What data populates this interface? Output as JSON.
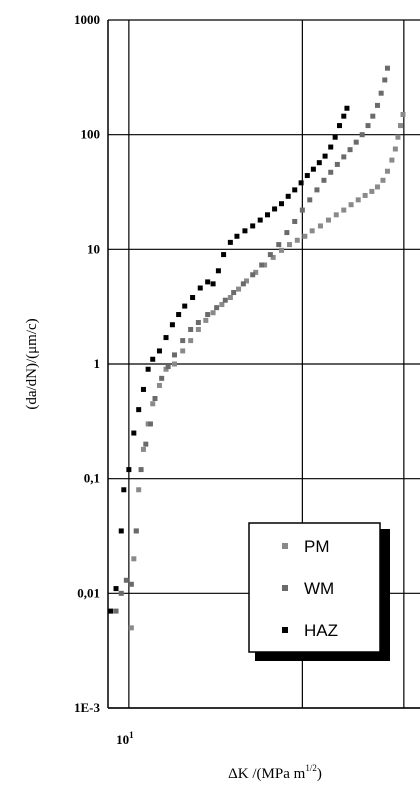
{
  "chart_data": {
    "type": "scatter",
    "title": "",
    "xlabel": "ΔK  /(MPa m",
    "xlabel_sup": "1/2",
    "xlabel_tail": ")",
    "ylabel": "(da/dN)/(μm/c)",
    "x_scale": "log",
    "y_scale": "log",
    "xlim": [
      9.2,
      32
    ],
    "ylim": [
      0.001,
      1000
    ],
    "x_tick_labels": [
      {
        "value": 10,
        "label": "10",
        "sup": "1"
      }
    ],
    "y_tick_labels": [
      {
        "value": 1000,
        "label": "1000"
      },
      {
        "value": 100,
        "label": "100"
      },
      {
        "value": 10,
        "label": "10"
      },
      {
        "value": 1,
        "label": "1"
      },
      {
        "value": 0.1,
        "label": "0,1"
      },
      {
        "value": 0.01,
        "label": "0,01"
      },
      {
        "value": 0.001,
        "label": "1E-3"
      }
    ],
    "x_gridlines": [
      10,
      20,
      30
    ],
    "grid": true,
    "legend_position": "bottom-right",
    "series": [
      {
        "name": "PM",
        "color": "#8a8a8a",
        "points": [
          [
            10.1,
            0.005
          ],
          [
            10.2,
            0.02
          ],
          [
            10.3,
            0.035
          ],
          [
            10.4,
            0.08
          ],
          [
            10.6,
            0.18
          ],
          [
            10.8,
            0.3
          ],
          [
            11.0,
            0.45
          ],
          [
            11.3,
            0.65
          ],
          [
            11.6,
            0.9
          ],
          [
            12.0,
            1.0
          ],
          [
            12.4,
            1.3
          ],
          [
            12.8,
            1.6
          ],
          [
            13.2,
            2.0
          ],
          [
            13.6,
            2.4
          ],
          [
            14.0,
            2.8
          ],
          [
            14.5,
            3.3
          ],
          [
            15.0,
            3.8
          ],
          [
            15.5,
            4.5
          ],
          [
            16.0,
            5.3
          ],
          [
            16.6,
            6.3
          ],
          [
            17.2,
            7.3
          ],
          [
            17.8,
            8.5
          ],
          [
            18.4,
            9.8
          ],
          [
            19.0,
            11.0
          ],
          [
            19.6,
            12.0
          ],
          [
            20.2,
            13.0
          ],
          [
            20.8,
            14.5
          ],
          [
            21.5,
            16.0
          ],
          [
            22.2,
            18.0
          ],
          [
            22.9,
            20.0
          ],
          [
            23.6,
            22.0
          ],
          [
            24.3,
            24.5
          ],
          [
            25.0,
            27.0
          ],
          [
            25.7,
            29.5
          ],
          [
            26.4,
            32.0
          ],
          [
            27.0,
            35.0
          ],
          [
            27.6,
            40.0
          ],
          [
            28.1,
            48.0
          ],
          [
            28.6,
            60.0
          ],
          [
            29.0,
            75.0
          ],
          [
            29.3,
            95.0
          ],
          [
            29.6,
            120.0
          ],
          [
            29.9,
            150.0
          ]
        ]
      },
      {
        "name": "WM",
        "color": "#6a6a6a",
        "points": [
          [
            9.5,
            0.007
          ],
          [
            9.7,
            0.01
          ],
          [
            9.9,
            0.013
          ],
          [
            10.1,
            0.012
          ],
          [
            10.3,
            0.035
          ],
          [
            10.5,
            0.12
          ],
          [
            10.7,
            0.2
          ],
          [
            10.9,
            0.3
          ],
          [
            11.1,
            0.5
          ],
          [
            11.4,
            0.75
          ],
          [
            11.7,
            0.95
          ],
          [
            12.0,
            1.2
          ],
          [
            12.4,
            1.6
          ],
          [
            12.8,
            2.0
          ],
          [
            13.2,
            2.3
          ],
          [
            13.7,
            2.7
          ],
          [
            14.2,
            3.1
          ],
          [
            14.7,
            3.6
          ],
          [
            15.2,
            4.2
          ],
          [
            15.8,
            5.0
          ],
          [
            16.4,
            6.0
          ],
          [
            17.0,
            7.3
          ],
          [
            17.6,
            9.0
          ],
          [
            18.2,
            11.0
          ],
          [
            18.8,
            14.0
          ],
          [
            19.4,
            17.5
          ],
          [
            20.0,
            22.0
          ],
          [
            20.6,
            27.0
          ],
          [
            21.2,
            33.0
          ],
          [
            21.8,
            40.0
          ],
          [
            22.4,
            47.0
          ],
          [
            23.0,
            55.0
          ],
          [
            23.6,
            64.0
          ],
          [
            24.2,
            74.0
          ],
          [
            24.8,
            86.0
          ],
          [
            25.4,
            100.0
          ],
          [
            26.0,
            120.0
          ],
          [
            26.5,
            145.0
          ],
          [
            27.0,
            180.0
          ],
          [
            27.4,
            230.0
          ],
          [
            27.8,
            300.0
          ],
          [
            28.1,
            380.0
          ]
        ]
      },
      {
        "name": "HAZ",
        "color": "#000000",
        "points": [
          [
            9.3,
            0.007
          ],
          [
            9.5,
            0.011
          ],
          [
            9.7,
            0.035
          ],
          [
            9.8,
            0.08
          ],
          [
            10.0,
            0.12
          ],
          [
            10.2,
            0.25
          ],
          [
            10.4,
            0.4
          ],
          [
            10.6,
            0.6
          ],
          [
            10.8,
            0.9
          ],
          [
            11.0,
            1.1
          ],
          [
            11.3,
            1.3
          ],
          [
            11.6,
            1.7
          ],
          [
            11.9,
            2.2
          ],
          [
            12.2,
            2.7
          ],
          [
            12.5,
            3.2
          ],
          [
            12.9,
            3.8
          ],
          [
            13.3,
            4.6
          ],
          [
            13.7,
            5.2
          ],
          [
            14.0,
            5.0
          ],
          [
            14.3,
            6.5
          ],
          [
            14.6,
            9.0
          ],
          [
            15.0,
            11.5
          ],
          [
            15.4,
            13.0
          ],
          [
            15.9,
            14.5
          ],
          [
            16.4,
            16.0
          ],
          [
            16.9,
            18.0
          ],
          [
            17.4,
            20.0
          ],
          [
            17.9,
            22.5
          ],
          [
            18.4,
            25.0
          ],
          [
            18.9,
            29.0
          ],
          [
            19.4,
            33.0
          ],
          [
            19.9,
            38.0
          ],
          [
            20.4,
            44.0
          ],
          [
            20.9,
            50.0
          ],
          [
            21.4,
            57.0
          ],
          [
            21.9,
            65.0
          ],
          [
            22.4,
            78.0
          ],
          [
            22.8,
            95.0
          ],
          [
            23.2,
            120.0
          ],
          [
            23.6,
            145.0
          ],
          [
            23.9,
            170.0
          ]
        ]
      }
    ]
  }
}
